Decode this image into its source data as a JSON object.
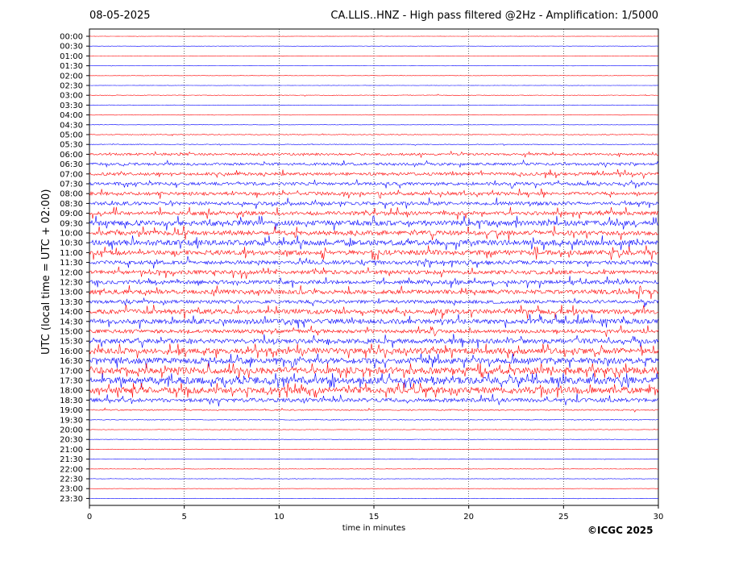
{
  "chart_data": {
    "type": "line",
    "title": "CA.LLIS..HNZ - High pass filtered @2Hz - Amplification: 1/5000",
    "date": "08-05-2025",
    "xlabel": "time in minutes",
    "ylabel": "UTC (local time = UTC + 02:00)",
    "xlim": [
      0,
      30
    ],
    "x_ticks": [
      "0",
      "5",
      "10",
      "15",
      "20",
      "25",
      "30"
    ],
    "y_ticks": [
      "00:00",
      "00:30",
      "01:00",
      "01:30",
      "02:00",
      "02:30",
      "03:00",
      "03:30",
      "04:00",
      "04:30",
      "05:00",
      "05:30",
      "06:00",
      "06:30",
      "07:00",
      "07:30",
      "08:00",
      "08:30",
      "09:00",
      "09:30",
      "10:00",
      "10:30",
      "11:00",
      "11:30",
      "12:00",
      "12:30",
      "13:00",
      "13:30",
      "14:00",
      "14:30",
      "15:00",
      "15:30",
      "16:00",
      "16:30",
      "17:00",
      "17:30",
      "18:00",
      "18:30",
      "19:00",
      "19:30",
      "20:00",
      "20:30",
      "21:00",
      "21:30",
      "22:00",
      "22:30",
      "23:00",
      "23:30"
    ],
    "series_colors": [
      "#ff0000",
      "#0000ff"
    ],
    "grid": "vertical dotted at 5 minute intervals",
    "activity": [
      0.2,
      0.2,
      0.2,
      0.2,
      0.2,
      0.2,
      0.4,
      0.3,
      0.3,
      0.2,
      0.5,
      0.5,
      1.5,
      1.8,
      2.0,
      2.0,
      2.2,
      2.3,
      2.5,
      3.5,
      3.0,
      3.6,
      3.2,
      2.5,
      2.6,
      2.5,
      2.8,
      2.2,
      3.0,
      3.2,
      2.4,
      3.0,
      3.8,
      3.9,
      4.5,
      4.6,
      4.4,
      2.6,
      0.8,
      0.5,
      0.3,
      0.3,
      0.3,
      0.3,
      0.3,
      0.3,
      0.2,
      0.2
    ]
  },
  "copyright": "©ICGC 2025"
}
